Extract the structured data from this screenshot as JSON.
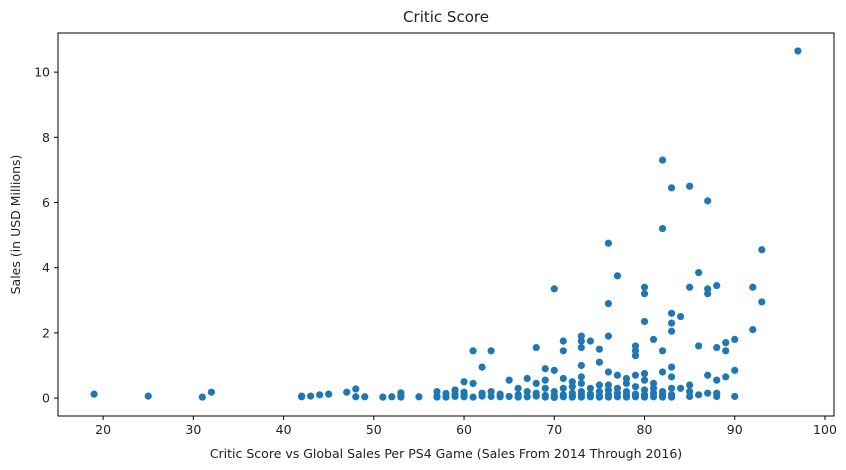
{
  "chart_data": {
    "type": "scatter",
    "title": "Critic Score",
    "xlabel": "Critic Score vs Global Sales Per PS4 Game (Sales From 2014 Through 2016)",
    "ylabel": "Sales (in USD Millions)",
    "xlim": [
      15,
      101
    ],
    "ylim": [
      -0.55,
      11.2
    ],
    "xticks": [
      20,
      30,
      40,
      50,
      60,
      70,
      80,
      90,
      100
    ],
    "yticks": [
      0,
      2,
      4,
      6,
      8,
      10
    ],
    "grid": false,
    "color": "#1f77b4",
    "points": [
      [
        19,
        0.12
      ],
      [
        25,
        0.06
      ],
      [
        31,
        0.03
      ],
      [
        32,
        0.18
      ],
      [
        42,
        0.04
      ],
      [
        42,
        0.06
      ],
      [
        43,
        0.06
      ],
      [
        44,
        0.1
      ],
      [
        45,
        0.12
      ],
      [
        47,
        0.18
      ],
      [
        48,
        0.04
      ],
      [
        48,
        0.28
      ],
      [
        49,
        0.04
      ],
      [
        51,
        0.03
      ],
      [
        52,
        0.04
      ],
      [
        53,
        0.03
      ],
      [
        53,
        0.08
      ],
      [
        53,
        0.16
      ],
      [
        55,
        0.04
      ],
      [
        57,
        0.03
      ],
      [
        57,
        0.06
      ],
      [
        57,
        0.2
      ],
      [
        58,
        0.03
      ],
      [
        58,
        0.14
      ],
      [
        59,
        0.05
      ],
      [
        59,
        0.12
      ],
      [
        59,
        0.25
      ],
      [
        60,
        0.04
      ],
      [
        60,
        0.1
      ],
      [
        60,
        0.18
      ],
      [
        60,
        0.5
      ],
      [
        61,
        0.03
      ],
      [
        61,
        0.45
      ],
      [
        61,
        1.45
      ],
      [
        62,
        0.06
      ],
      [
        62,
        0.15
      ],
      [
        62,
        0.95
      ],
      [
        63,
        0.05
      ],
      [
        63,
        0.2
      ],
      [
        63,
        1.45
      ],
      [
        64,
        0.04
      ],
      [
        64,
        0.12
      ],
      [
        65,
        0.05
      ],
      [
        65,
        0.55
      ],
      [
        66,
        0.03
      ],
      [
        66,
        0.1
      ],
      [
        66,
        0.3
      ],
      [
        67,
        0.04
      ],
      [
        67,
        0.2
      ],
      [
        67,
        0.6
      ],
      [
        68,
        0.06
      ],
      [
        68,
        0.15
      ],
      [
        68,
        0.45
      ],
      [
        68,
        1.55
      ],
      [
        69,
        0.03
      ],
      [
        69,
        0.08
      ],
      [
        69,
        0.3
      ],
      [
        69,
        0.55
      ],
      [
        69,
        0.9
      ],
      [
        70,
        0.02
      ],
      [
        70,
        0.08
      ],
      [
        70,
        0.2
      ],
      [
        70,
        0.85
      ],
      [
        70,
        3.35
      ],
      [
        71,
        0.04
      ],
      [
        71,
        0.1
      ],
      [
        71,
        0.3
      ],
      [
        71,
        0.6
      ],
      [
        71,
        1.45
      ],
      [
        71,
        1.75
      ],
      [
        72,
        0.03
      ],
      [
        72,
        0.06
      ],
      [
        72,
        0.15
      ],
      [
        72,
        0.35
      ],
      [
        72,
        0.5
      ],
      [
        73,
        0.03
      ],
      [
        73,
        0.1
      ],
      [
        73,
        0.2
      ],
      [
        73,
        0.45
      ],
      [
        73,
        0.65
      ],
      [
        73,
        1.0
      ],
      [
        73,
        1.55
      ],
      [
        73,
        1.75
      ],
      [
        73,
        1.9
      ],
      [
        74,
        0.04
      ],
      [
        74,
        0.12
      ],
      [
        74,
        0.3
      ],
      [
        74,
        1.75
      ],
      [
        75,
        0.03
      ],
      [
        75,
        0.07
      ],
      [
        75,
        0.2
      ],
      [
        75,
        0.4
      ],
      [
        75,
        1.1
      ],
      [
        75,
        1.5
      ],
      [
        76,
        0.03
      ],
      [
        76,
        0.1
      ],
      [
        76,
        0.25
      ],
      [
        76,
        0.4
      ],
      [
        76,
        0.8
      ],
      [
        76,
        1.9
      ],
      [
        76,
        2.9
      ],
      [
        76,
        4.75
      ],
      [
        77,
        0.04
      ],
      [
        77,
        0.15
      ],
      [
        77,
        0.3
      ],
      [
        77,
        0.7
      ],
      [
        77,
        3.75
      ],
      [
        78,
        0.03
      ],
      [
        78,
        0.1
      ],
      [
        78,
        0.2
      ],
      [
        78,
        0.45
      ],
      [
        78,
        0.6
      ],
      [
        79,
        0.04
      ],
      [
        79,
        0.12
      ],
      [
        79,
        0.35
      ],
      [
        79,
        0.7
      ],
      [
        79,
        1.3
      ],
      [
        79,
        1.45
      ],
      [
        79,
        1.6
      ],
      [
        80,
        0.03
      ],
      [
        80,
        0.1
      ],
      [
        80,
        0.25
      ],
      [
        80,
        0.55
      ],
      [
        80,
        0.75
      ],
      [
        80,
        2.35
      ],
      [
        80,
        3.2
      ],
      [
        80,
        3.4
      ],
      [
        81,
        0.04
      ],
      [
        81,
        0.15
      ],
      [
        81,
        0.3
      ],
      [
        81,
        0.45
      ],
      [
        81,
        1.8
      ],
      [
        82,
        0.03
      ],
      [
        82,
        0.1
      ],
      [
        82,
        0.2
      ],
      [
        82,
        0.8
      ],
      [
        82,
        1.45
      ],
      [
        82,
        5.2
      ],
      [
        82,
        7.3
      ],
      [
        83,
        0.03
      ],
      [
        83,
        0.1
      ],
      [
        83,
        0.3
      ],
      [
        83,
        0.65
      ],
      [
        83,
        0.95
      ],
      [
        83,
        2.05
      ],
      [
        83,
        2.3
      ],
      [
        83,
        2.6
      ],
      [
        83,
        6.45
      ],
      [
        84,
        0.3
      ],
      [
        84,
        2.5
      ],
      [
        85,
        0.05
      ],
      [
        85,
        0.2
      ],
      [
        85,
        0.4
      ],
      [
        85,
        3.4
      ],
      [
        85,
        6.5
      ],
      [
        86,
        0.1
      ],
      [
        86,
        1.6
      ],
      [
        86,
        3.85
      ],
      [
        87,
        0.15
      ],
      [
        87,
        0.7
      ],
      [
        87,
        3.2
      ],
      [
        87,
        3.35
      ],
      [
        87,
        6.05
      ],
      [
        88,
        0.05
      ],
      [
        88,
        0.15
      ],
      [
        88,
        0.55
      ],
      [
        88,
        1.55
      ],
      [
        88,
        3.45
      ],
      [
        89,
        0.65
      ],
      [
        89,
        1.45
      ],
      [
        89,
        1.7
      ],
      [
        90,
        0.05
      ],
      [
        90,
        0.85
      ],
      [
        90,
        1.8
      ],
      [
        92,
        2.1
      ],
      [
        92,
        3.4
      ],
      [
        93,
        2.95
      ],
      [
        93,
        4.55
      ],
      [
        97,
        10.65
      ]
    ]
  }
}
